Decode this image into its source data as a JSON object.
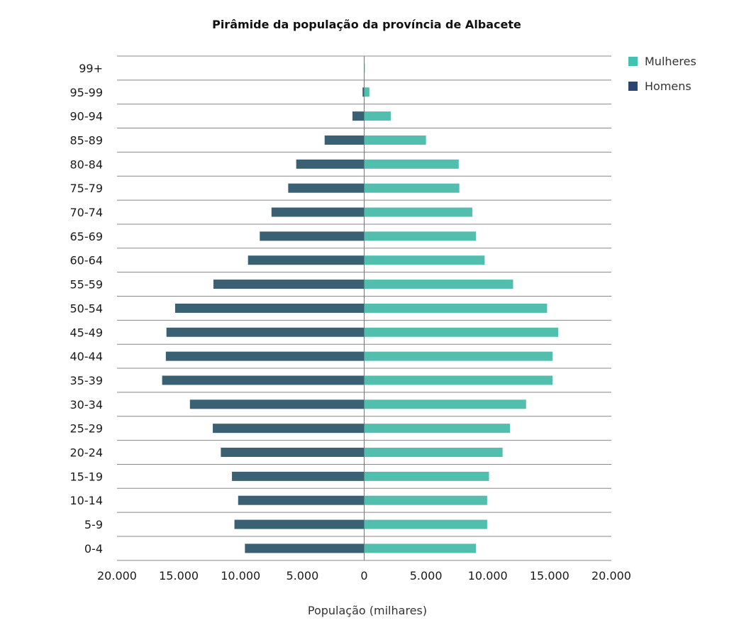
{
  "chart_data": {
    "type": "bar",
    "orientation": "horizontal",
    "title": "Pirâmide da população da província de Albacete",
    "xlabel": "População (milhares)",
    "ylabel": "",
    "categories": [
      "99+",
      "95-99",
      "90-94",
      "85-89",
      "80-84",
      "75-79",
      "70-74",
      "65-69",
      "60-64",
      "55-59",
      "50-54",
      "45-49",
      "40-44",
      "35-39",
      "30-34",
      "25-29",
      "20-24",
      "15-19",
      "10-14",
      "5-9",
      "0-4"
    ],
    "series": [
      {
        "name": "Mulheres",
        "color": "#52bfae",
        "values": [
          50,
          420,
          2150,
          5000,
          7650,
          7700,
          8750,
          9050,
          9750,
          12050,
          14800,
          15700,
          15250,
          15250,
          13100,
          11800,
          11200,
          10100,
          9950,
          9950,
          9050
        ]
      },
      {
        "name": "Homens",
        "color": "#3a6173",
        "values": [
          10,
          130,
          950,
          3200,
          5500,
          6150,
          7500,
          8450,
          9400,
          12200,
          15300,
          16000,
          16050,
          16350,
          14100,
          12250,
          11600,
          10700,
          10200,
          10500,
          9650
        ]
      }
    ],
    "xlim": [
      -20000,
      20000
    ],
    "xticks": [
      -20000,
      -15000,
      -10000,
      -5000,
      0,
      5000,
      10000,
      15000,
      20000
    ],
    "xtick_labels": [
      "20.000",
      "15.000",
      "10.000",
      "5.000",
      "0",
      "5.000",
      "10.000",
      "15.000",
      "20.000"
    ],
    "grid": "horizontal",
    "legend_position": "top-right",
    "legend": [
      {
        "label": "Mulheres",
        "color": "#45c1b2"
      },
      {
        "label": "Homens",
        "color": "#2a4670"
      }
    ]
  }
}
